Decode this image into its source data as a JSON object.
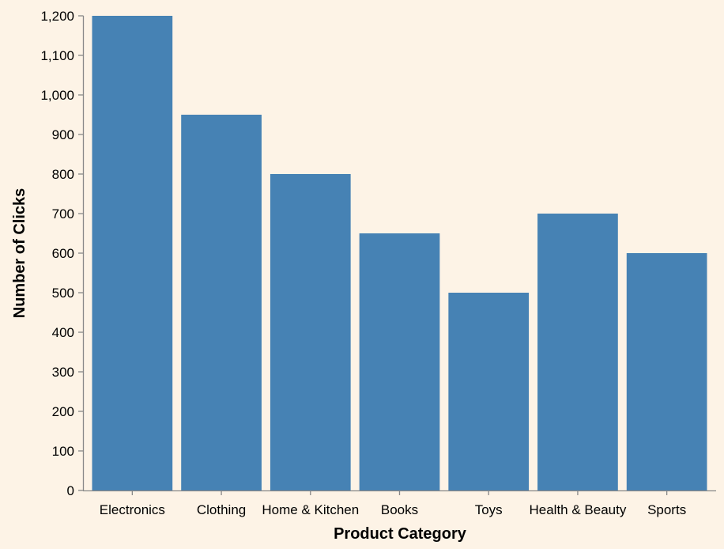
{
  "chart_data": {
    "type": "bar",
    "categories": [
      "Electronics",
      "Clothing",
      "Home & Kitchen",
      "Books",
      "Toys",
      "Health & Beauty",
      "Sports"
    ],
    "values": [
      1200,
      950,
      800,
      650,
      500,
      700,
      600
    ],
    "title": "",
    "xlabel": "Product Category",
    "ylabel": "Number of Clicks",
    "ylim": [
      0,
      1200
    ],
    "yticks": [
      0,
      100,
      200,
      300,
      400,
      500,
      600,
      700,
      800,
      900,
      1000,
      1100,
      1200
    ],
    "ytick_labels": [
      "0",
      "100",
      "200",
      "300",
      "400",
      "500",
      "600",
      "700",
      "800",
      "900",
      "1,000",
      "1,100",
      "1,200"
    ],
    "grid": false,
    "colors": {
      "bar": "#4682b4",
      "background": "#fdf3e6",
      "axis": "#888888"
    }
  }
}
